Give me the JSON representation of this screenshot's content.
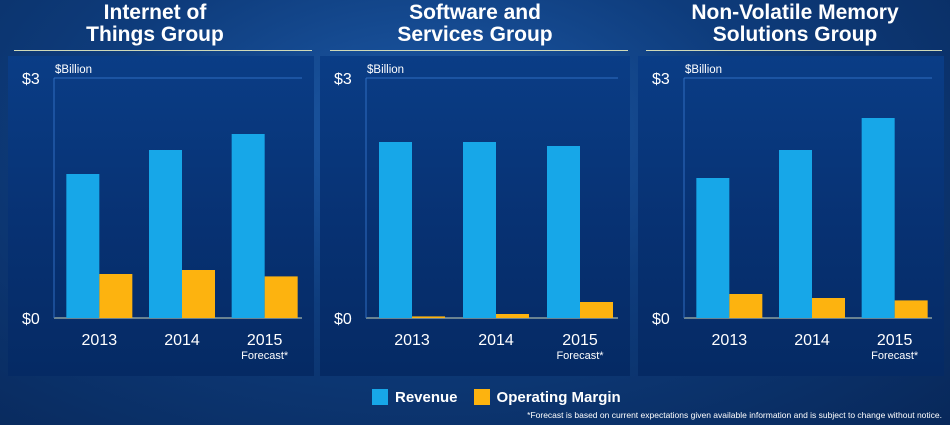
{
  "colors": {
    "revenue": "#17a7e8",
    "operating_margin": "#fdb30f"
  },
  "legend": {
    "revenue_label": "Revenue",
    "margin_label": "Operating Margin"
  },
  "footnote": "*Forecast is based on current expectations given available information and is subject to change without notice.",
  "chart_data": [
    {
      "type": "bar",
      "title_lines": [
        "Internet of",
        "Things Group"
      ],
      "unit": "$Billion",
      "categories": [
        "2013",
        "2014",
        "2015"
      ],
      "category_notes": [
        "",
        "",
        "Forecast*"
      ],
      "ylim": [
        0,
        3
      ],
      "ytick_labels": [
        "$3",
        "$0"
      ],
      "series": [
        {
          "name": "Revenue",
          "values": [
            1.8,
            2.1,
            2.3
          ]
        },
        {
          "name": "Operating Margin",
          "values": [
            0.55,
            0.6,
            0.52
          ]
        }
      ]
    },
    {
      "type": "bar",
      "title_lines": [
        "Software and",
        "Services Group"
      ],
      "unit": "$Billion",
      "categories": [
        "2013",
        "2014",
        "2015"
      ],
      "category_notes": [
        "",
        "",
        "Forecast*"
      ],
      "ylim": [
        0,
        3
      ],
      "ytick_labels": [
        "$3",
        "$0"
      ],
      "series": [
        {
          "name": "Revenue",
          "values": [
            2.2,
            2.2,
            2.15
          ]
        },
        {
          "name": "Operating Margin",
          "values": [
            0.02,
            0.05,
            0.2
          ]
        }
      ]
    },
    {
      "type": "bar",
      "title_lines": [
        "Non-Volatile Memory",
        "Solutions Group"
      ],
      "unit": "$Billion",
      "categories": [
        "2013",
        "2014",
        "2015"
      ],
      "category_notes": [
        "",
        "",
        "Forecast*"
      ],
      "ylim": [
        0,
        3
      ],
      "ytick_labels": [
        "$3",
        "$0"
      ],
      "series": [
        {
          "name": "Revenue",
          "values": [
            1.75,
            2.1,
            2.5
          ]
        },
        {
          "name": "Operating Margin",
          "values": [
            0.3,
            0.25,
            0.22
          ]
        }
      ]
    }
  ]
}
